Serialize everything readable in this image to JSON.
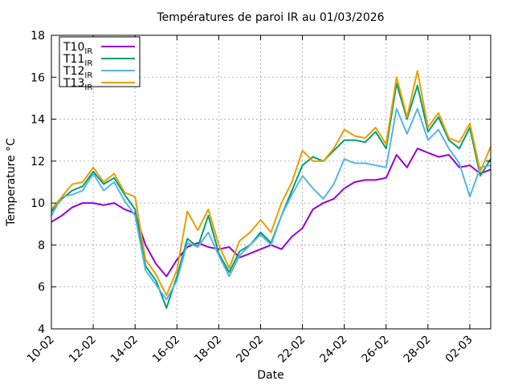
{
  "chart_data": {
    "type": "line",
    "title": "Températures de paroi IR au 01/03/2026",
    "xlabel": "Date",
    "ylabel": "Temperature °C",
    "ylim": [
      4,
      18
    ],
    "yticks": [
      "4",
      "6",
      "8",
      "10",
      "12",
      "14",
      "16",
      "18"
    ],
    "xlim": [
      0,
      21
    ],
    "xticks": [
      {
        "day": 0,
        "label": "10-02"
      },
      {
        "day": 2,
        "label": "12-02"
      },
      {
        "day": 4,
        "label": "14-02"
      },
      {
        "day": 6,
        "label": "16-02"
      },
      {
        "day": 8,
        "label": "18-02"
      },
      {
        "day": 10,
        "label": "20-02"
      },
      {
        "day": 12,
        "label": "22-02"
      },
      {
        "day": 14,
        "label": "24-02"
      },
      {
        "day": 16,
        "label": "26-02"
      },
      {
        "day": 18,
        "label": "28-02"
      },
      {
        "day": 20,
        "label": "02-03"
      }
    ],
    "grid": true,
    "legend_position": "top-left",
    "series": [
      {
        "name": "T10",
        "sub": "IR",
        "color": "#9400d3",
        "x": [
          0,
          0.5,
          1,
          1.5,
          2,
          2.5,
          3,
          3.5,
          4,
          4.5,
          5,
          5.5,
          6,
          6.5,
          7,
          7.5,
          8,
          8.5,
          9,
          9.5,
          10,
          10.5,
          11,
          11.5,
          12,
          12.5,
          13,
          13.5,
          14,
          14.5,
          15,
          15.5,
          16,
          16.5,
          17,
          17.5,
          18,
          18.5,
          19,
          19.5,
          20,
          20.5,
          21
        ],
        "values": [
          9.1,
          9.4,
          9.8,
          10.0,
          10.0,
          9.9,
          10.0,
          9.7,
          9.5,
          8.0,
          7.1,
          6.5,
          7.3,
          7.9,
          8.1,
          7.9,
          7.8,
          7.9,
          7.4,
          7.6,
          7.8,
          8.0,
          7.8,
          8.4,
          8.8,
          9.7,
          10.0,
          10.2,
          10.7,
          11.0,
          11.1,
          11.1,
          11.2,
          12.3,
          11.7,
          12.6,
          12.4,
          12.2,
          12.3,
          11.7,
          11.8,
          11.4,
          11.6
        ]
      },
      {
        "name": "T11",
        "sub": "IR",
        "color": "#009e73",
        "x": [
          0,
          0.5,
          1,
          1.5,
          2,
          2.5,
          3,
          3.5,
          4,
          4.5,
          5,
          5.5,
          6,
          6.5,
          7,
          7.5,
          8,
          8.5,
          9,
          9.5,
          10,
          10.5,
          11,
          11.5,
          12,
          12.5,
          13,
          13.5,
          14,
          14.5,
          15,
          15.5,
          16,
          16.5,
          17,
          17.5,
          18,
          18.5,
          19,
          19.5,
          20,
          20.5,
          21
        ],
        "values": [
          9.6,
          10.2,
          10.6,
          10.8,
          11.5,
          10.9,
          11.2,
          10.4,
          9.7,
          7.0,
          6.3,
          5.0,
          6.5,
          8.3,
          7.9,
          9.4,
          7.6,
          6.7,
          7.7,
          8.0,
          8.6,
          8.1,
          9.4,
          10.6,
          11.8,
          12.2,
          12.0,
          12.5,
          13.0,
          13.0,
          12.9,
          13.4,
          12.6,
          15.7,
          14.0,
          15.6,
          13.4,
          14.1,
          13.0,
          12.6,
          13.6,
          11.3,
          12.1
        ]
      },
      {
        "name": "T12",
        "sub": "IR",
        "color": "#56b4e9",
        "x": [
          0,
          0.5,
          1,
          1.5,
          2,
          2.5,
          3,
          3.5,
          4,
          4.5,
          5,
          5.5,
          6,
          6.5,
          7,
          7.5,
          8,
          8.5,
          9,
          9.5,
          10,
          10.5,
          11,
          11.5,
          12,
          12.5,
          13,
          13.5,
          14,
          14.5,
          15,
          15.5,
          16,
          16.5,
          17,
          17.5,
          18,
          18.5,
          19,
          19.5,
          20,
          20.5,
          21
        ],
        "values": [
          9.4,
          10.3,
          10.4,
          10.6,
          11.4,
          10.6,
          11.0,
          10.1,
          9.4,
          6.8,
          6.1,
          5.4,
          6.3,
          8.1,
          7.9,
          8.6,
          7.5,
          6.5,
          7.5,
          8.0,
          8.5,
          8.0,
          9.4,
          10.4,
          11.3,
          10.7,
          10.2,
          10.9,
          12.1,
          11.9,
          11.9,
          11.8,
          11.7,
          14.5,
          13.3,
          14.5,
          13.0,
          13.5,
          12.6,
          11.9,
          10.3,
          11.7,
          11.8
        ]
      },
      {
        "name": "T13",
        "sub": "IR",
        "color": "#e69f00",
        "x": [
          0,
          0.5,
          1,
          1.5,
          2,
          2.5,
          3,
          3.5,
          4,
          4.5,
          5,
          5.5,
          6,
          6.5,
          7,
          7.5,
          8,
          8.5,
          9,
          9.5,
          10,
          10.5,
          11,
          11.5,
          12,
          12.5,
          13,
          13.5,
          14,
          14.5,
          15,
          15.5,
          16,
          16.5,
          17,
          17.5,
          18,
          18.5,
          19,
          19.5,
          20,
          20.5,
          21
        ],
        "values": [
          9.7,
          10.3,
          10.9,
          11.0,
          11.7,
          11.0,
          11.4,
          10.5,
          10.3,
          7.3,
          6.6,
          5.6,
          6.8,
          9.6,
          8.7,
          9.7,
          8.0,
          6.9,
          8.2,
          8.6,
          9.2,
          8.6,
          10.0,
          11.0,
          12.5,
          12.0,
          12.0,
          12.6,
          13.5,
          13.2,
          13.1,
          13.6,
          12.8,
          16.0,
          14.1,
          16.3,
          13.6,
          14.3,
          13.1,
          12.9,
          13.8,
          11.5,
          12.7
        ]
      }
    ]
  }
}
